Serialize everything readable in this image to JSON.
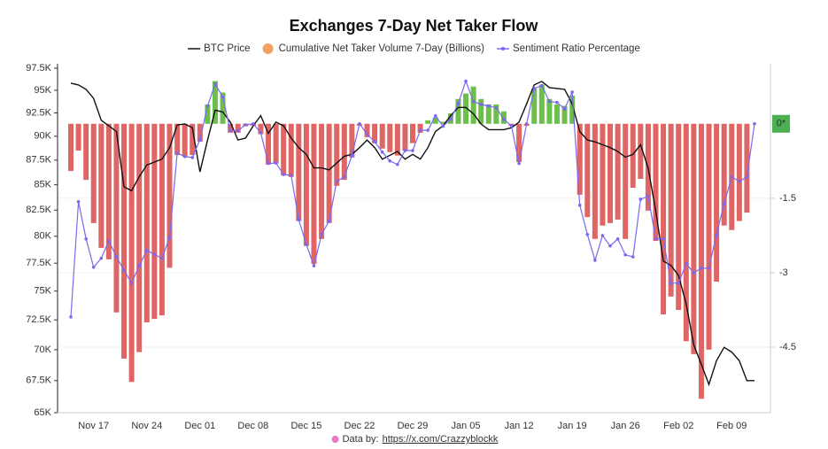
{
  "chart_data": {
    "type": "combo",
    "title": "Exchanges 7-Day Net Taker Flow",
    "categories": [
      null,
      null,
      null,
      "Nov 17",
      null,
      null,
      null,
      null,
      null,
      null,
      "Nov 24",
      null,
      null,
      null,
      null,
      null,
      null,
      "Dec 01",
      null,
      null,
      null,
      null,
      null,
      null,
      "Dec 08",
      null,
      null,
      null,
      null,
      null,
      null,
      "Dec 15",
      null,
      null,
      null,
      null,
      null,
      null,
      "Dec 22",
      null,
      null,
      null,
      null,
      null,
      null,
      "Dec 29",
      null,
      null,
      null,
      null,
      null,
      null,
      "Jan 05",
      null,
      null,
      null,
      null,
      null,
      null,
      "Jan 12",
      null,
      null,
      null,
      null,
      null,
      null,
      "Jan 19",
      null,
      null,
      null,
      null,
      null,
      null,
      "Jan 26",
      null,
      null,
      null,
      null,
      null,
      null,
      "Feb 02",
      null,
      null,
      null,
      null,
      null,
      null,
      "Feb 09",
      null,
      null,
      null
    ],
    "series": [
      {
        "name": "BTC Price",
        "type": "line",
        "axis": "y",
        "color": "#111111",
        "values": [
          95800,
          95600,
          95100,
          94100,
          91700,
          91100,
          90500,
          84800,
          84400,
          85800,
          87000,
          87300,
          87600,
          88800,
          91200,
          91300,
          90900,
          86300,
          89600,
          92800,
          92600,
          91500,
          89600,
          89800,
          91100,
          92200,
          90300,
          91500,
          91100,
          89800,
          88800,
          88100,
          86700,
          86700,
          86500,
          87200,
          87900,
          88100,
          88800,
          89600,
          88800,
          87600,
          88000,
          88400,
          87600,
          88100,
          87600,
          88800,
          90500,
          91100,
          92200,
          93100,
          93100,
          92400,
          91300,
          90700,
          90700,
          90700,
          90900,
          91500,
          93500,
          95600,
          96000,
          95300,
          95200,
          95100,
          93500,
          90500,
          89600,
          89400,
          89100,
          88800,
          88400,
          87800,
          88100,
          89100,
          86700,
          82400,
          77700,
          77300,
          76400,
          73900,
          70400,
          68800,
          67200,
          69100,
          70200,
          69800,
          69100,
          67500,
          67500
        ]
      },
      {
        "name": "Cumulative Net Taker Volume 7-Day (Billions)",
        "type": "bar",
        "axis": "y2",
        "color": "#f4a261",
        "positive_color": "#6dbf4b",
        "negative_color": "#e06666",
        "values": [
          -0.95,
          -0.54,
          -1.13,
          -2.0,
          -2.5,
          -2.73,
          -3.8,
          -4.73,
          -5.2,
          -4.6,
          -4.0,
          -3.93,
          -3.86,
          -2.9,
          -0.63,
          -0.66,
          -0.63,
          -0.36,
          0.39,
          0.86,
          0.63,
          -0.18,
          -0.18,
          -0.05,
          -0.04,
          -0.21,
          -0.82,
          -0.8,
          -1.04,
          -1.07,
          -1.96,
          -2.46,
          -2.82,
          -2.32,
          -2.0,
          -1.25,
          -1.13,
          -0.68,
          -0.04,
          -0.27,
          -0.39,
          -0.5,
          -0.57,
          -0.64,
          -0.54,
          -0.39,
          -0.18,
          0.07,
          0.13,
          0.04,
          0.21,
          0.5,
          0.61,
          0.75,
          0.5,
          0.39,
          0.39,
          0.25,
          -0.04,
          -0.77,
          -0.04,
          0.71,
          0.79,
          0.5,
          0.39,
          0.36,
          0.57,
          -1.43,
          -1.88,
          -2.32,
          -2.05,
          -2.0,
          -1.93,
          -2.32,
          -1.29,
          -1.11,
          -1.75,
          -2.36,
          -3.84,
          -3.48,
          -3.75,
          -4.38,
          -4.64,
          -5.54,
          -4.55,
          -3.18,
          -2.05,
          -2.14,
          -1.96,
          -1.79,
          null
        ]
      },
      {
        "name": "Sentiment Ratio Percentage",
        "type": "line",
        "axis": "y2",
        "color": "#7b68ee",
        "values": [
          -3.89,
          -1.57,
          -2.32,
          -2.89,
          -2.71,
          -2.36,
          -2.68,
          -2.95,
          -3.21,
          -2.86,
          -2.55,
          -2.63,
          -2.71,
          -2.29,
          -0.59,
          -0.66,
          -0.68,
          -0.32,
          0.36,
          0.8,
          0.54,
          -0.14,
          -0.14,
          -0.02,
          0,
          -0.18,
          -0.8,
          -0.79,
          -1.02,
          -1.04,
          -1.93,
          -2.43,
          -2.86,
          -2.23,
          -1.96,
          -1.16,
          -1.07,
          -0.64,
          0,
          -0.21,
          -0.36,
          -0.57,
          -0.75,
          -0.82,
          -0.54,
          -0.54,
          -0.13,
          -0.13,
          0.16,
          -0.05,
          0.09,
          0.41,
          0.86,
          0.45,
          0.39,
          0.36,
          0.32,
          0.09,
          -0.04,
          -0.8,
          0,
          0.71,
          0.77,
          0.45,
          0.43,
          0.3,
          0.64,
          -1.64,
          -2.23,
          -2.75,
          -2.25,
          -2.46,
          -2.32,
          -2.64,
          -2.68,
          -1.52,
          -1.46,
          -2.32,
          -2.32,
          -3.21,
          -3.21,
          -2.82,
          -3.0,
          -2.91,
          -2.91,
          -2.23,
          -1.61,
          -1.07,
          -1.16,
          -1.07,
          0
        ]
      }
    ],
    "ylim": [
      65000,
      97500
    ],
    "log_scale": true,
    "yticks": [
      {
        "value": 65000,
        "label": "65K"
      },
      {
        "value": 67500,
        "label": "67.5K"
      },
      {
        "value": 70000,
        "label": "70K"
      },
      {
        "value": 72500,
        "label": "72.5K"
      },
      {
        "value": 75000,
        "label": "75K"
      },
      {
        "value": 77500,
        "label": "77.5K"
      },
      {
        "value": 80000,
        "label": "80K"
      },
      {
        "value": 82500,
        "label": "82.5K"
      },
      {
        "value": 85000,
        "label": "85K"
      },
      {
        "value": 87500,
        "label": "87.5K"
      },
      {
        "value": 90000,
        "label": "90K"
      },
      {
        "value": 92500,
        "label": "92.5K"
      },
      {
        "value": 95000,
        "label": "95K"
      },
      {
        "value": 97500,
        "label": "97.5K"
      }
    ],
    "y2lim": [
      -5.82,
      1.12
    ],
    "y2ticks": [
      -4.5,
      -3,
      -1.5
    ],
    "badge": {
      "value": 0,
      "label": "0*",
      "color": "#4caf50"
    },
    "grid": true,
    "legend": "top",
    "source": {
      "label": "Data by:",
      "link": "https://x.com/Crazzyblockk",
      "color": "#e87ac8"
    }
  }
}
